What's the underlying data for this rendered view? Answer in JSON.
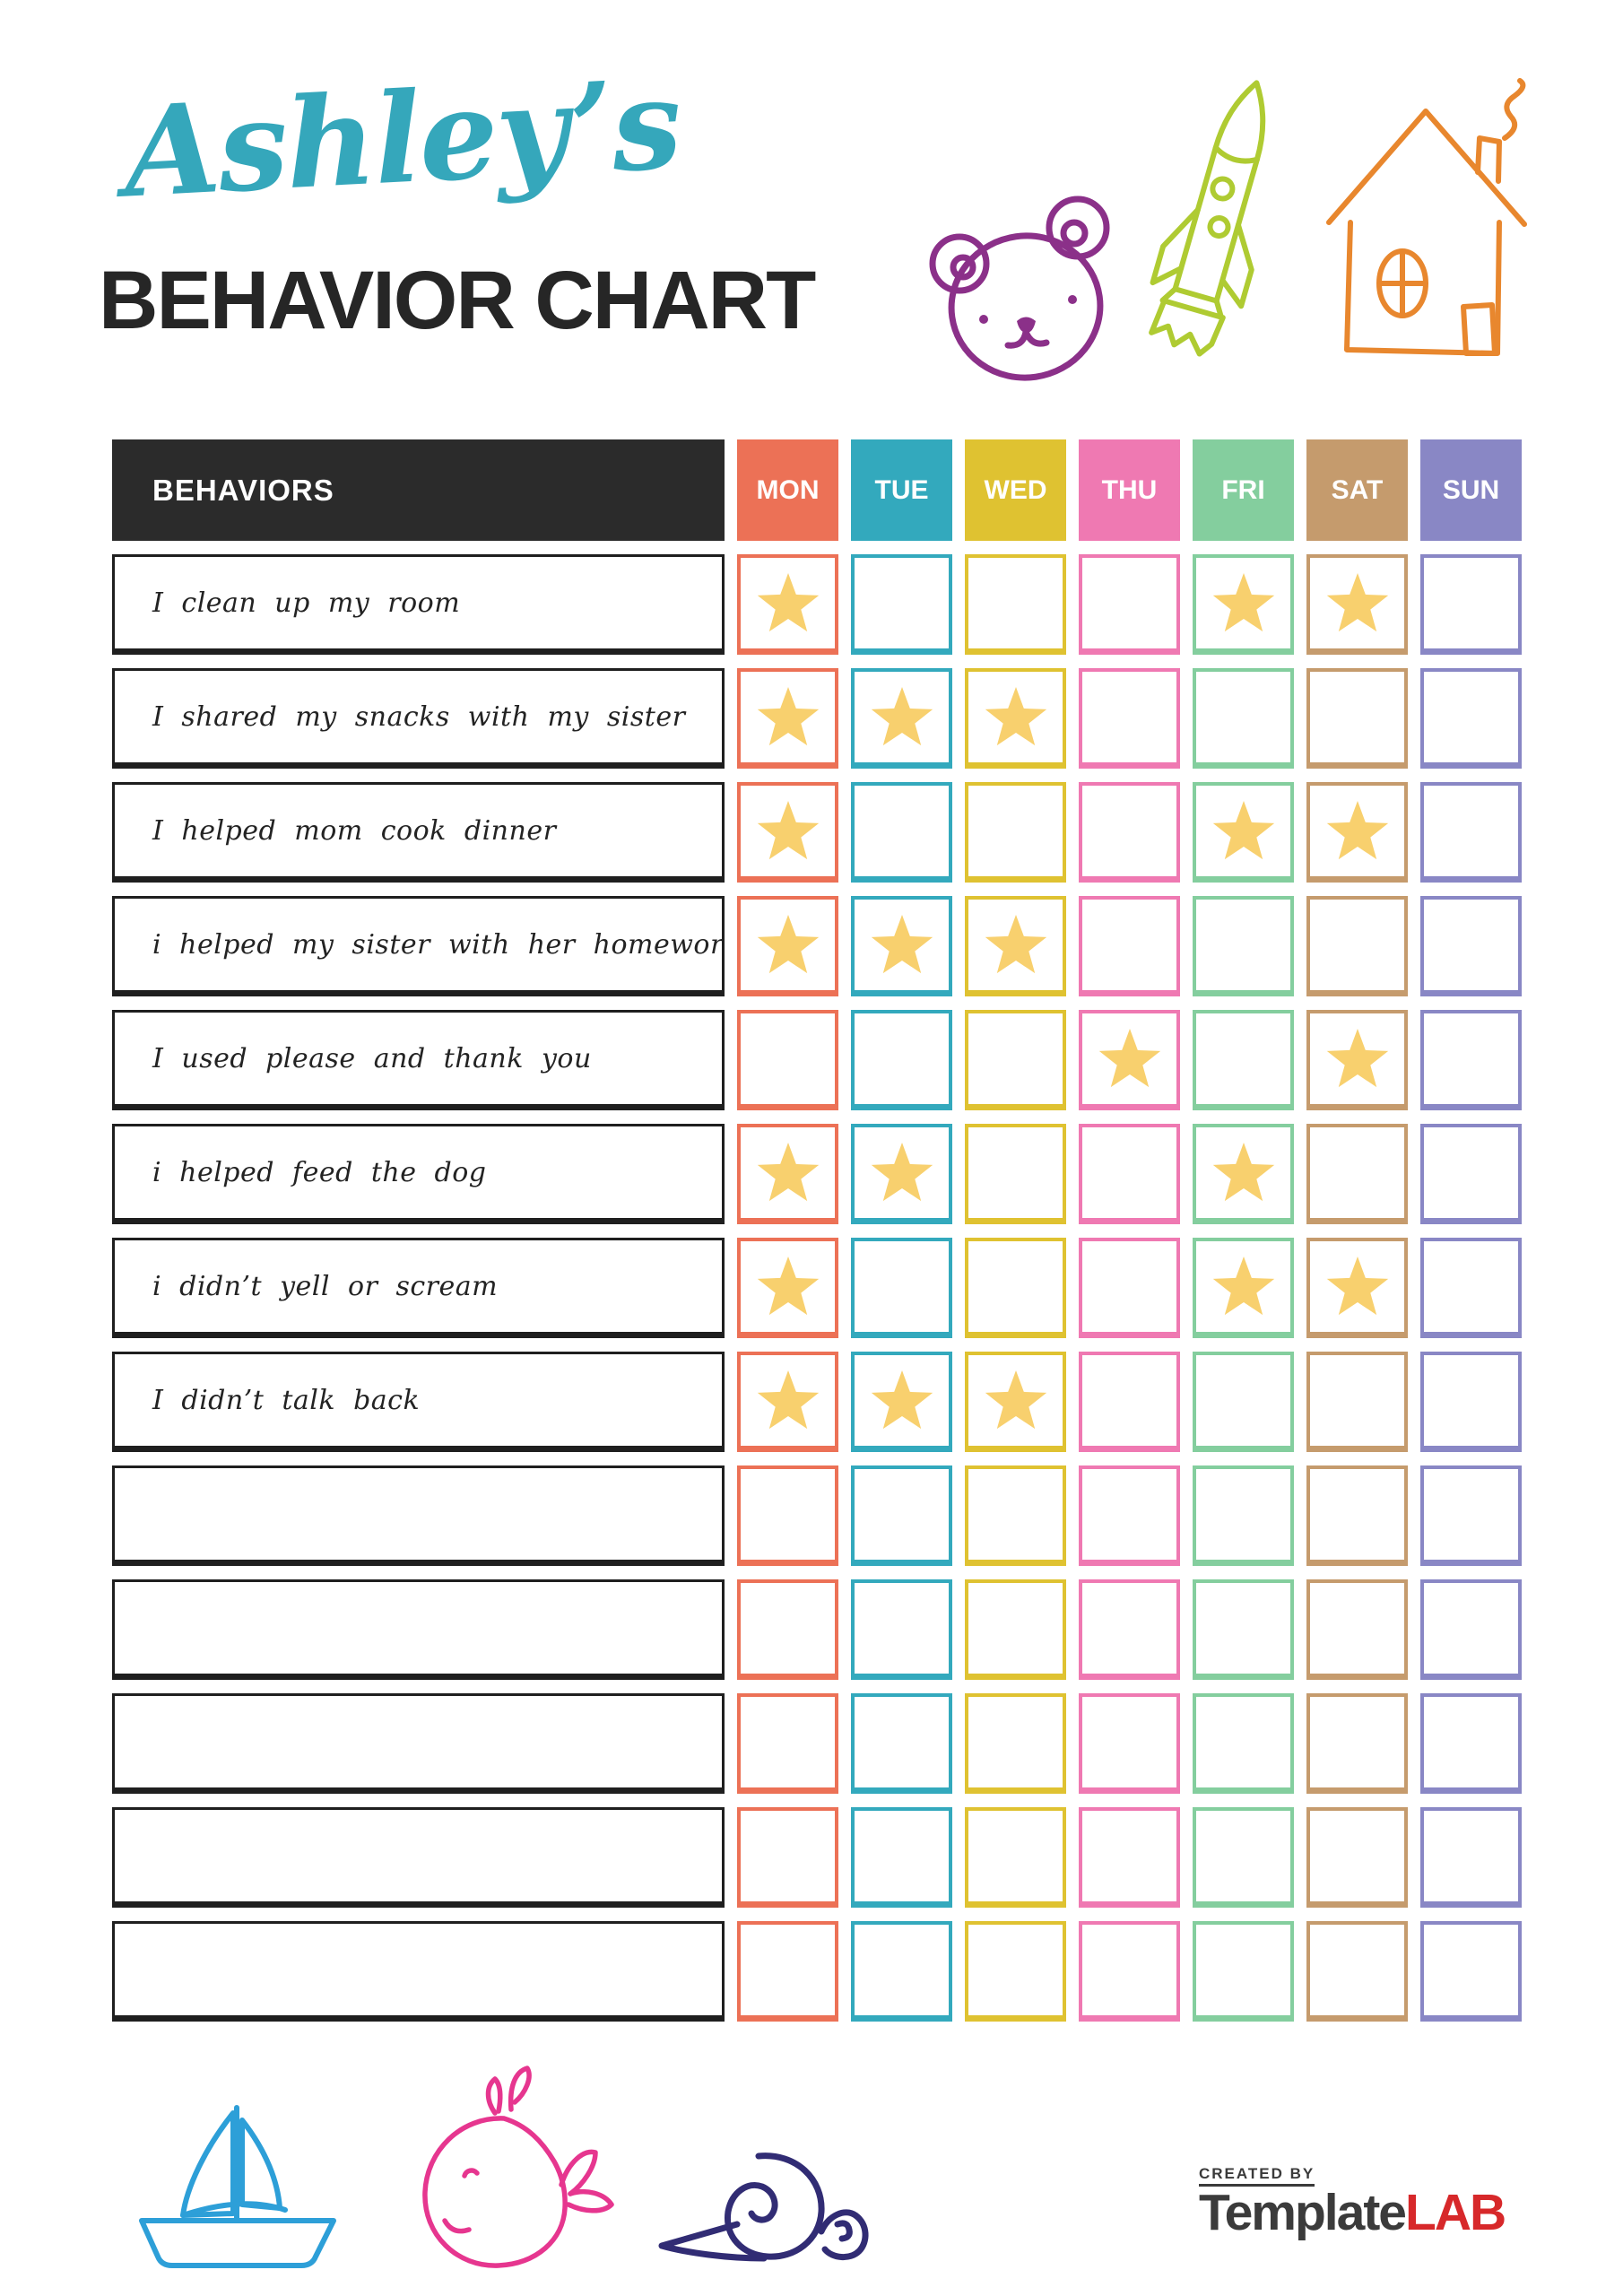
{
  "page": {
    "title_script": "Ashley’s",
    "title_main": "BEHAVIOR CHART"
  },
  "table": {
    "behaviors_header": "BEHAVIORS",
    "header_bg": "#2B2B2B",
    "star_color": "#F8D06E",
    "days": [
      {
        "label": "MON",
        "color": "#EC7156"
      },
      {
        "label": "TUE",
        "color": "#33A9BD"
      },
      {
        "label": "WED",
        "color": "#DFC231"
      },
      {
        "label": "THU",
        "color": "#EF79B2"
      },
      {
        "label": "FRI",
        "color": "#84CE9E"
      },
      {
        "label": "SAT",
        "color": "#C59B6D"
      },
      {
        "label": "SUN",
        "color": "#8987C5"
      }
    ],
    "rows": [
      {
        "label": "I clean up my room",
        "stars": [
          "MON",
          "FRI",
          "SAT"
        ]
      },
      {
        "label": "I shared my snacks with my sister",
        "stars": [
          "MON",
          "TUE",
          "WED"
        ]
      },
      {
        "label": "I helped mom cook dinner",
        "stars": [
          "MON",
          "FRI",
          "SAT"
        ]
      },
      {
        "label": "i helped my sister with her homework",
        "stars": [
          "MON",
          "TUE",
          "WED"
        ]
      },
      {
        "label": "I used please and thank you",
        "stars": [
          "THU",
          "SAT"
        ]
      },
      {
        "label": "i helped feed the dog",
        "stars": [
          "MON",
          "TUE",
          "FRI"
        ]
      },
      {
        "label": "i didn’t yell or scream",
        "stars": [
          "MON",
          "FRI",
          "SAT"
        ]
      },
      {
        "label": "I didn’t talk back",
        "stars": [
          "MON",
          "TUE",
          "WED"
        ]
      },
      {
        "label": "",
        "stars": []
      },
      {
        "label": "",
        "stars": []
      },
      {
        "label": "",
        "stars": []
      },
      {
        "label": "",
        "stars": []
      },
      {
        "label": "",
        "stars": []
      }
    ]
  },
  "decorations": {
    "colors": {
      "bear": "#8B3089",
      "rocket": "#AFCB32",
      "house": "#E8872E",
      "sailboat": "#2D9FD8",
      "whale": "#E6368F",
      "snail": "#312C74"
    }
  },
  "footer": {
    "created_by": "CREATED BY",
    "brand_template": "Template",
    "brand_lab": "LAB"
  }
}
